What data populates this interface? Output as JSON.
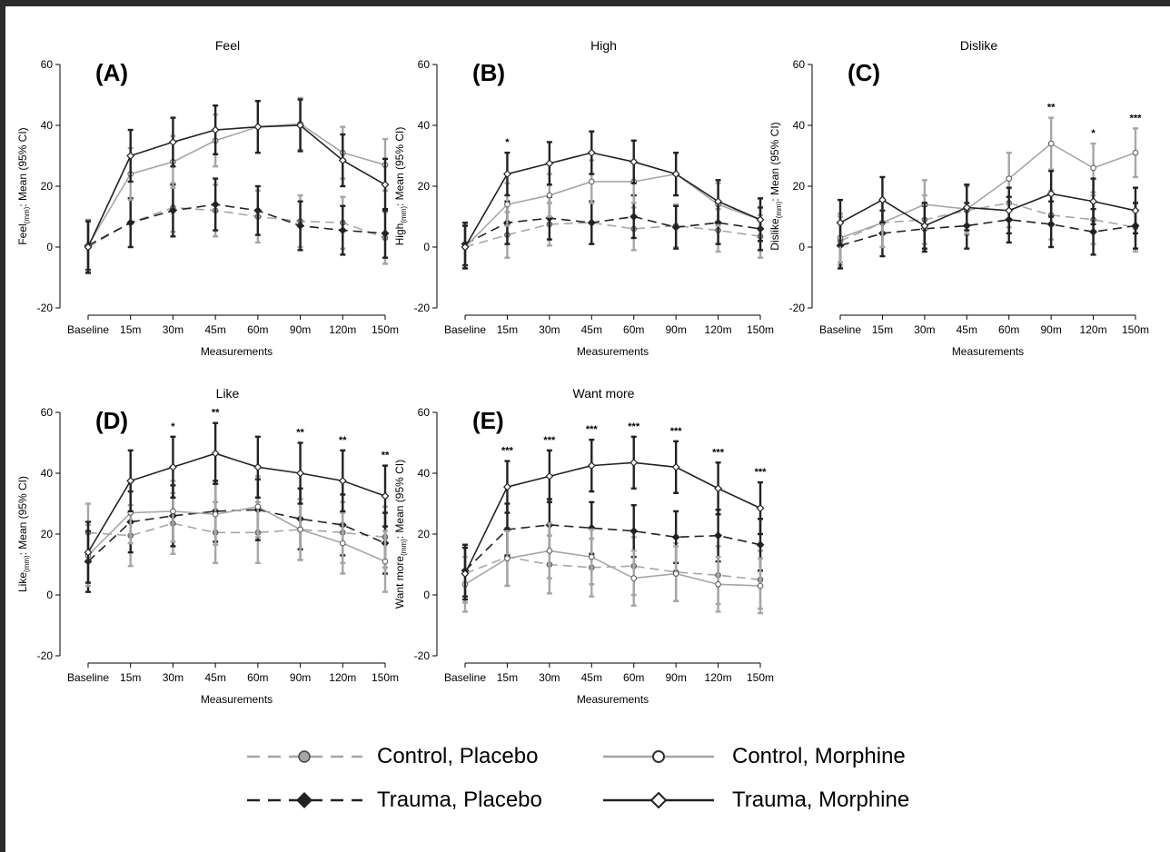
{
  "chart_data": {
    "type": "line",
    "shared": {
      "categories": [
        "Baseline",
        "15m",
        "30m",
        "45m",
        "60m",
        "90m",
        "120m",
        "150m"
      ],
      "xlabel": "Measurements",
      "ylim": [
        -20,
        60
      ],
      "yticks": [
        -20,
        0,
        20,
        40,
        60
      ],
      "series_styles": {
        "Control, Placebo": {
          "color": "#a6a6a6",
          "dash": "dashed",
          "marker": "circle-filled"
        },
        "Trauma, Placebo": {
          "color": "#222222",
          "dash": "dashed",
          "marker": "diamond-filled"
        },
        "Control, Morphine": {
          "color": "#a6a6a6",
          "dash": "solid",
          "marker": "circle-open"
        },
        "Trauma, Morphine": {
          "color": "#222222",
          "dash": "solid",
          "marker": "diamond-open"
        }
      }
    },
    "panels": [
      {
        "id": "A",
        "label": "(A)",
        "title": "Feel",
        "ylabel": "Feel",
        "ylabel_sub": "(mm)",
        "ylabel_tail": ": Mean (95% CI)",
        "significance": [
          "",
          "",
          "",
          "",
          "",
          "",
          "",
          ""
        ],
        "series": [
          {
            "name": "Control, Placebo",
            "values": [
              0,
              8,
              13,
              12,
              10,
              8.5,
              8,
              3
            ],
            "ci": [
              8.5,
              8,
              8,
              8.5,
              8.5,
              8.5,
              8.5,
              8.5
            ]
          },
          {
            "name": "Trauma, Placebo",
            "values": [
              0.5,
              8,
              12,
              14,
              12,
              7,
              5.5,
              4.5
            ],
            "ci": [
              8,
              8,
              8.5,
              8.5,
              8,
              8,
              8,
              8
            ]
          },
          {
            "name": "Control, Morphine",
            "values": [
              0.5,
              24,
              28,
              35,
              39.5,
              40.5,
              31,
              27
            ],
            "ci": [
              8.5,
              8.5,
              8.5,
              8.5,
              8.5,
              8.5,
              8.5,
              8.5
            ]
          },
          {
            "name": "Trauma, Morphine",
            "values": [
              0,
              30,
              34.5,
              38.5,
              39.5,
              40,
              28.5,
              20.5
            ],
            "ci": [
              8.5,
              8.5,
              8,
              8,
              8.5,
              8.5,
              8.5,
              8.5
            ]
          }
        ]
      },
      {
        "id": "B",
        "label": "(B)",
        "title": "High",
        "ylabel": "High",
        "ylabel_sub": "(mm)",
        "ylabel_tail": ": Mean (95% CI)",
        "significance": [
          "",
          "*",
          "",
          "",
          "",
          "",
          "",
          ""
        ],
        "series": [
          {
            "name": "Control, Placebo",
            "values": [
              0,
              4,
              7.5,
              8,
              6,
              7,
              5.5,
              3.5
            ],
            "ci": [
              7,
              7.5,
              7,
              7,
              7,
              7,
              7,
              7
            ]
          },
          {
            "name": "Trauma, Placebo",
            "values": [
              1,
              8,
              9.5,
              8,
              10,
              6.5,
              8,
              6
            ],
            "ci": [
              7,
              7,
              7,
              7,
              7,
              7,
              7,
              7
            ]
          },
          {
            "name": "Control, Morphine",
            "values": [
              0,
              14,
              17,
              21.5,
              21.5,
              24,
              14,
              9
            ],
            "ci": [
              7,
              7,
              7,
              7,
              7,
              7,
              7,
              7
            ]
          },
          {
            "name": "Trauma, Morphine",
            "values": [
              0,
              24,
              27.5,
              31,
              28,
              24,
              15,
              9
            ],
            "ci": [
              7,
              7,
              7,
              7,
              7,
              7,
              7,
              7
            ]
          }
        ]
      },
      {
        "id": "C",
        "label": "(C)",
        "title": "Dislike",
        "ylabel": "Dislike",
        "ylabel_sub": "(mm)",
        "ylabel_tail": ": Mean (95% CI)",
        "significance": [
          "",
          "",
          "",
          "",
          "",
          "**",
          "*",
          "***"
        ],
        "series": [
          {
            "name": "Control, Placebo",
            "values": [
              2,
              8,
              9,
              12,
              14.5,
              10.5,
              9,
              6.5
            ],
            "ci": [
              8,
              8,
              8,
              8,
              8,
              8,
              8,
              8
            ]
          },
          {
            "name": "Trauma, Placebo",
            "values": [
              0.5,
              4.5,
              6,
              7,
              9,
              7.5,
              5,
              7
            ],
            "ci": [
              7.5,
              7.5,
              7.5,
              7.5,
              7.5,
              7.5,
              7.5,
              7.5
            ]
          },
          {
            "name": "Control, Morphine",
            "values": [
              3,
              8,
              14,
              12.5,
              22.5,
              34,
              26,
              31
            ],
            "ci": [
              8,
              8,
              8,
              8,
              8.5,
              8.5,
              8,
              8
            ]
          },
          {
            "name": "Trauma, Morphine",
            "values": [
              8,
              15.5,
              7,
              13,
              12,
              17.5,
              15,
              12
            ],
            "ci": [
              7.5,
              7.5,
              7.5,
              7.5,
              7.5,
              7.5,
              7.5,
              7.5
            ]
          }
        ]
      },
      {
        "id": "D",
        "label": "(D)",
        "title": "Like",
        "ylabel": "Like",
        "ylabel_sub": "(mm)",
        "ylabel_tail": ": Mean (95% CI)",
        "significance": [
          "",
          "",
          "*",
          "**",
          "",
          "**",
          "**",
          "**"
        ],
        "series": [
          {
            "name": "Control, Placebo",
            "values": [
              20.5,
              19.5,
              23.5,
              20.5,
              20.5,
              21.5,
              20.5,
              19
            ],
            "ci": [
              9.5,
              10,
              10,
              10,
              10,
              10,
              10,
              10
            ]
          },
          {
            "name": "Trauma, Placebo",
            "values": [
              11,
              24,
              26,
              27.5,
              28,
              25,
              23,
              17
            ],
            "ci": [
              10,
              10,
              10,
              10,
              10,
              10,
              10,
              10
            ]
          },
          {
            "name": "Control, Morphine",
            "values": [
              13,
              27,
              27.5,
              26.5,
              29,
              21.5,
              17,
              11
            ],
            "ci": [
              10,
              10,
              10,
              10,
              10,
              10,
              10,
              10
            ]
          },
          {
            "name": "Trauma, Morphine",
            "values": [
              14,
              37.5,
              42,
              46.5,
              42,
              40,
              37.5,
              32.5
            ],
            "ci": [
              10,
              10,
              10,
              10,
              10,
              10,
              10,
              10
            ]
          }
        ]
      },
      {
        "id": "E",
        "label": "(E)",
        "title": "Want more",
        "ylabel": "Want more",
        "ylabel_sub": "(mm)",
        "ylabel_tail": ": Mean (95% CI)",
        "significance": [
          "",
          "***",
          "***",
          "***",
          "***",
          "***",
          "***",
          "***"
        ],
        "series": [
          {
            "name": "Control, Placebo",
            "values": [
              7,
              12.5,
              10,
              9,
              9.5,
              7.5,
              6.5,
              5
            ],
            "ci": [
              9.5,
              9.5,
              9.5,
              9.5,
              9.5,
              9.5,
              9.5,
              9.5
            ]
          },
          {
            "name": "Trauma, Placebo",
            "values": [
              8,
              21.5,
              23,
              22,
              21,
              19,
              19.5,
              16.5
            ],
            "ci": [
              8.5,
              8.5,
              8.5,
              8.5,
              8.5,
              8.5,
              8.5,
              8.5
            ]
          },
          {
            "name": "Control, Morphine",
            "values": [
              3.5,
              12,
              14.5,
              12.5,
              5.5,
              7,
              3.5,
              3
            ],
            "ci": [
              9,
              9,
              9,
              9,
              9,
              9,
              9,
              9
            ]
          },
          {
            "name": "Trauma, Morphine",
            "values": [
              7,
              35.5,
              39,
              42.5,
              43.5,
              42,
              35,
              28.5
            ],
            "ci": [
              8.5,
              8.5,
              8.5,
              8.5,
              8.5,
              8.5,
              8.5,
              8.5
            ]
          }
        ]
      }
    ],
    "legend": [
      {
        "label": "Control, Placebo",
        "color": "#a6a6a6",
        "dash": "dashed",
        "marker": "circle-filled"
      },
      {
        "label": "Control, Morphine",
        "color": "#a6a6a6",
        "dash": "solid",
        "marker": "circle-open"
      },
      {
        "label": "Trauma, Placebo",
        "color": "#222222",
        "dash": "dashed",
        "marker": "diamond-filled"
      },
      {
        "label": "Trauma, Morphine",
        "color": "#222222",
        "dash": "solid",
        "marker": "diamond-open"
      }
    ]
  }
}
